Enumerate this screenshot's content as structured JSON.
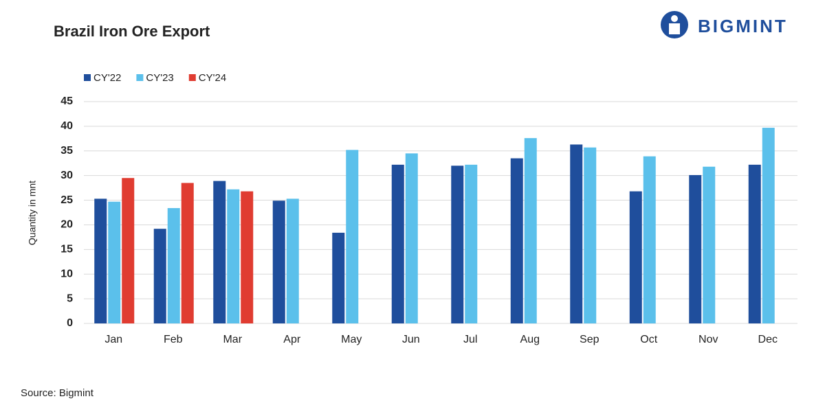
{
  "logo": "BIGMINT",
  "source": "Source: Bigmint",
  "chart_data": {
    "type": "bar",
    "title": "Brazil Iron Ore Export",
    "ylabel": "Quantity in mnt",
    "categories": [
      "Jan",
      "Feb",
      "Mar",
      "Apr",
      "May",
      "Jun",
      "Jul",
      "Aug",
      "Sep",
      "Oct",
      "Nov",
      "Dec"
    ],
    "series": [
      {
        "name": "CY'22",
        "color": "#1f4e9c",
        "values": [
          25.3,
          19.2,
          28.9,
          24.9,
          18.4,
          32.2,
          32.0,
          33.5,
          36.3,
          26.8,
          30.1,
          32.2
        ]
      },
      {
        "name": "CY'23",
        "color": "#5bc0eb",
        "values": [
          24.7,
          23.4,
          27.2,
          25.3,
          35.2,
          34.5,
          32.2,
          37.6,
          35.7,
          33.9,
          31.8,
          39.7
        ]
      },
      {
        "name": "CY'24",
        "color": "#e03c31",
        "values": [
          29.5,
          28.5,
          26.8,
          null,
          null,
          null,
          null,
          null,
          null,
          null,
          null,
          null
        ]
      }
    ],
    "ylim": [
      0,
      45
    ],
    "yticks": [
      0,
      5,
      10,
      15,
      20,
      25,
      30,
      35,
      40,
      45
    ],
    "grid": true,
    "legend": "top-left"
  }
}
